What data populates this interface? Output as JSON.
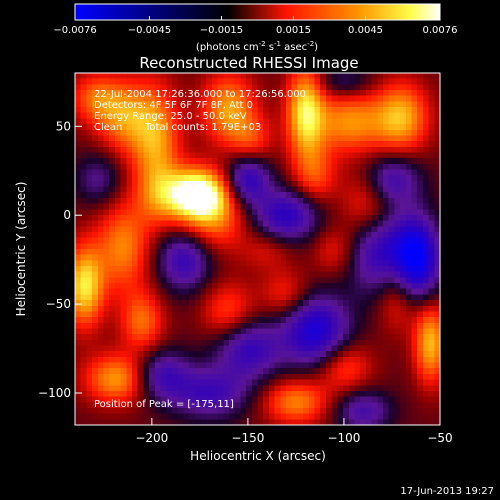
{
  "chart_data": {
    "type": "heatmap",
    "title": "Reconstructed RHESSI Image",
    "xlabel": "Heliocentric X (arcsec)",
    "ylabel": "Heliocentric Y (arcsec)",
    "xlim": [
      -240,
      -50
    ],
    "ylim": [
      -118,
      80
    ],
    "xticks": [
      -200,
      -150,
      -100,
      -50
    ],
    "yticks": [
      50,
      0,
      -50,
      -100
    ],
    "colorbar": {
      "min": -0.0076,
      "max": 0.0076,
      "ticks": [
        "-0.0076",
        "-0.0045",
        "-0.0015",
        "0.0015",
        "0.0045",
        "0.0076"
      ],
      "unit_prefix": "(photons cm",
      "unit_sup1": "-2",
      "unit_mid1": " s",
      "unit_sup2": "-1",
      "unit_mid2": " asec",
      "unit_sup3": "-2",
      "unit_suffix": ")"
    },
    "annotations": {
      "line1": "22-Jul-2004 17:26:36.000 to 17:26:56.000",
      "line2": "Detectors: 4F 5F 6F 7F 8F, Att 0",
      "line3": "Energy Range: 25.0 - 50.0 keV",
      "line4_left": "Clean",
      "line4_right": "Total counts: 1.79E+03",
      "peak": "Position of Peak = [-175,11]"
    },
    "sources": [
      {
        "x": -177,
        "y": 12,
        "sx": 11,
        "sy": 10,
        "amp": 0.0078
      },
      {
        "x": -168,
        "y": -2,
        "sx": 13,
        "sy": 14,
        "amp": 0.0035
      },
      {
        "x": -198,
        "y": 42,
        "sx": 9,
        "sy": 22,
        "amp": 0.0045
      },
      {
        "x": -197,
        "y": 10,
        "sx": 8,
        "sy": 12,
        "amp": 0.002
      },
      {
        "x": -215,
        "y": 56,
        "sx": 10,
        "sy": 14,
        "amp": 0.004
      },
      {
        "x": -230,
        "y": 66,
        "sx": 9,
        "sy": 10,
        "amp": 0.003
      },
      {
        "x": -160,
        "y": 60,
        "sx": 10,
        "sy": 14,
        "amp": 0.0045
      },
      {
        "x": -148,
        "y": 42,
        "sx": 8,
        "sy": 10,
        "amp": 0.0025
      },
      {
        "x": -120,
        "y": 58,
        "sx": 7,
        "sy": 18,
        "amp": 0.0058
      },
      {
        "x": -97,
        "y": 52,
        "sx": 13,
        "sy": 12,
        "amp": 0.0042
      },
      {
        "x": -70,
        "y": 55,
        "sx": 10,
        "sy": 14,
        "amp": 0.0048
      },
      {
        "x": -115,
        "y": 22,
        "sx": 8,
        "sy": 12,
        "amp": 0.0028
      },
      {
        "x": -87,
        "y": 5,
        "sx": 10,
        "sy": 14,
        "amp": 0.0032
      },
      {
        "x": -105,
        "y": -20,
        "sx": 8,
        "sy": 10,
        "amp": 0.002
      },
      {
        "x": -235,
        "y": -40,
        "sx": 7,
        "sy": 16,
        "amp": 0.0058
      },
      {
        "x": -215,
        "y": -18,
        "sx": 10,
        "sy": 18,
        "amp": 0.004
      },
      {
        "x": -205,
        "y": -60,
        "sx": 8,
        "sy": 12,
        "amp": 0.0035
      },
      {
        "x": -218,
        "y": -92,
        "sx": 12,
        "sy": 10,
        "amp": 0.0045
      },
      {
        "x": -160,
        "y": -55,
        "sx": 10,
        "sy": 12,
        "amp": 0.003
      },
      {
        "x": -130,
        "y": -45,
        "sx": 9,
        "sy": 10,
        "amp": 0.0025
      },
      {
        "x": -125,
        "y": -105,
        "sx": 12,
        "sy": 9,
        "amp": 0.004
      },
      {
        "x": -100,
        "y": -85,
        "sx": 10,
        "sy": 10,
        "amp": 0.003
      },
      {
        "x": -72,
        "y": -45,
        "sx": 8,
        "sy": 14,
        "amp": 0.003
      },
      {
        "x": -55,
        "y": -72,
        "sx": 6,
        "sy": 16,
        "amp": 0.005
      },
      {
        "x": -140,
        "y": -20,
        "sx": 9,
        "sy": 8,
        "amp": 0.0015
      },
      {
        "x": -150,
        "y": 20,
        "sx": 8,
        "sy": 10,
        "amp": -0.005
      },
      {
        "x": -130,
        "y": 0,
        "sx": 12,
        "sy": 10,
        "amp": -0.005
      },
      {
        "x": -183,
        "y": -25,
        "sx": 10,
        "sy": 12,
        "amp": -0.0045
      },
      {
        "x": -150,
        "y": -75,
        "sx": 12,
        "sy": 12,
        "amp": -0.0045
      },
      {
        "x": -115,
        "y": -65,
        "sx": 12,
        "sy": 14,
        "amp": -0.006
      },
      {
        "x": -80,
        "y": -20,
        "sx": 12,
        "sy": 18,
        "amp": -0.005
      },
      {
        "x": -62,
        "y": -25,
        "sx": 8,
        "sy": 16,
        "amp": -0.007
      },
      {
        "x": -75,
        "y": 20,
        "sx": 10,
        "sy": 10,
        "amp": -0.004
      },
      {
        "x": -195,
        "y": -90,
        "sx": 10,
        "sy": 10,
        "amp": -0.004
      },
      {
        "x": -170,
        "y": -100,
        "sx": 14,
        "sy": 10,
        "amp": -0.004
      },
      {
        "x": -90,
        "y": -110,
        "sx": 10,
        "sy": 8,
        "amp": -0.0035
      },
      {
        "x": -228,
        "y": 20,
        "sx": 8,
        "sy": 10,
        "amp": -0.0025
      },
      {
        "x": -100,
        "y": 75,
        "sx": 10,
        "sy": 6,
        "amp": -0.002
      }
    ]
  },
  "footer": {
    "timestamp": "17-Jun-2013 19:27"
  }
}
